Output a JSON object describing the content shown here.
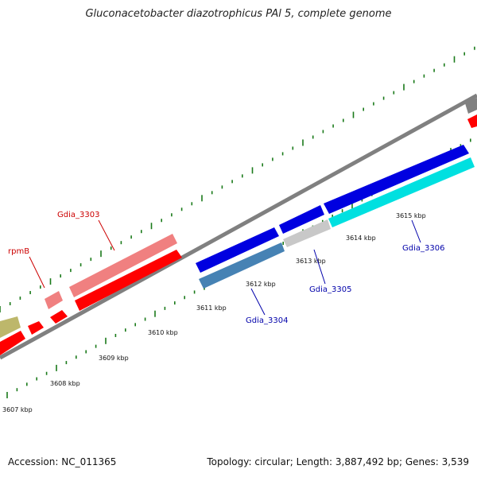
{
  "title": "Gluconacetobacter diazotrophicus PAl 5, complete genome",
  "footer": {
    "accession": "Accession: NC_011365",
    "summary": "Topology: circular; Length: 3,887,492 bp; Genes: 3,539"
  },
  "ticks": [
    "3607 kbp",
    "3608 kbp",
    "3609 kbp",
    "3610 kbp",
    "3611 kbp",
    "3612 kbp",
    "3613 kbp",
    "3614 kbp",
    "3615 kbp"
  ],
  "gene_labels": {
    "gdia_3303": "Gdia_3303",
    "rpmb": "rpmB",
    "gdia_3304": "Gdia_3304",
    "gdia_3305": "Gdia_3305",
    "gdia_3306": "Gdia_3306"
  },
  "colors": {
    "forward_cds": "#ff0000",
    "light_red_gene": "#f08080",
    "blue_gene": "#0000e0",
    "steelblue_gene": "#4682b4",
    "silver_gene": "#c8c8c8",
    "cyan_gene": "#00e0e0",
    "olive_gene": "#bdb76b",
    "grey_gene": "#808080",
    "backbone": "#808080",
    "tick": "#1a7a1a",
    "red_label": "#cc0000",
    "blue_label": "#0000aa"
  }
}
